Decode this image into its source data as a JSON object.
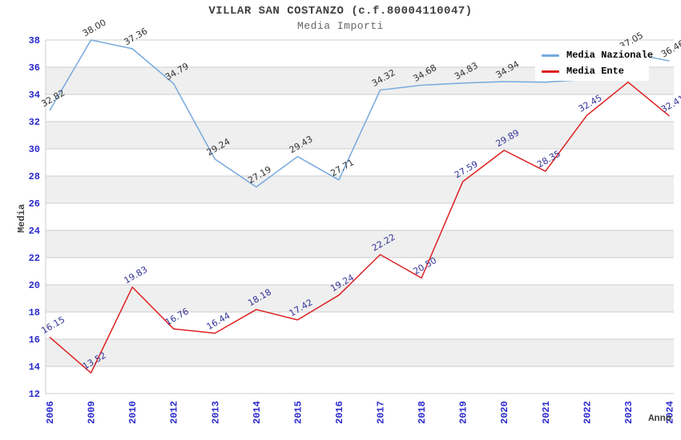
{
  "header": {
    "title": "VILLAR SAN COSTANZO (c.f.80004110047)",
    "subtitle": "Media Importi"
  },
  "legend": {
    "items": [
      {
        "label": "Media Nazionale",
        "color": "#76A9DD"
      },
      {
        "label": "Media Ente",
        "color": "#DD2020"
      }
    ]
  },
  "chart_data": {
    "type": "line",
    "title": "VILLAR SAN COSTANZO (c.f.80004110047)",
    "subtitle": "Media Importi",
    "xlabel": "Anno",
    "ylabel": "Media",
    "categories": [
      "2006",
      "2009",
      "2010",
      "2012",
      "2013",
      "2014",
      "2015",
      "2016",
      "2017",
      "2018",
      "2019",
      "2020",
      "2021",
      "2022",
      "2023",
      "2024"
    ],
    "ylim": [
      12,
      38
    ],
    "ytick_step": 2,
    "yticks": [
      12,
      14,
      16,
      18,
      20,
      22,
      24,
      26,
      28,
      30,
      32,
      34,
      36,
      38
    ],
    "grid": true,
    "alternating_bands": true,
    "legend_position": "top-right-inside",
    "series": [
      {
        "name": "Media Nazionale",
        "color": "#76A9DD",
        "label_color": "#333333",
        "values": [
          32.82,
          38.0,
          37.36,
          34.79,
          29.24,
          27.19,
          29.43,
          27.71,
          34.32,
          34.68,
          34.83,
          34.94,
          34.9,
          35.1,
          37.05,
          36.46
        ],
        "labels": [
          "32.82",
          "38.00",
          "37.36",
          "34.79",
          "29.24",
          "27.19",
          "29.43",
          "27.71",
          "34.32",
          "34.68",
          "34.83",
          "34.94",
          "",
          "",
          "37.05",
          "36.46"
        ]
      },
      {
        "name": "Media Ente",
        "color": "#DD2020",
        "label_color": "#333399",
        "values": [
          16.15,
          13.52,
          19.83,
          16.76,
          16.44,
          18.18,
          17.42,
          19.24,
          22.22,
          20.5,
          27.59,
          29.89,
          28.35,
          32.45,
          34.9,
          32.41
        ],
        "labels": [
          "16.15",
          "13.52",
          "19.83",
          "16.76",
          "16.44",
          "18.18",
          "17.42",
          "19.24",
          "22.22",
          "20.50",
          "27.59",
          "29.89",
          "28.35",
          "32.45",
          "",
          "32.41"
        ]
      }
    ],
    "style": {
      "background": "#FFFFFF",
      "band_fill": "#EFEFEF",
      "grid_color": "#CCCCCC",
      "tick_label_color": "#2929CC",
      "axis_title_color": "#404040",
      "title_color": "#404040",
      "subtitle_color": "#666666"
    }
  }
}
